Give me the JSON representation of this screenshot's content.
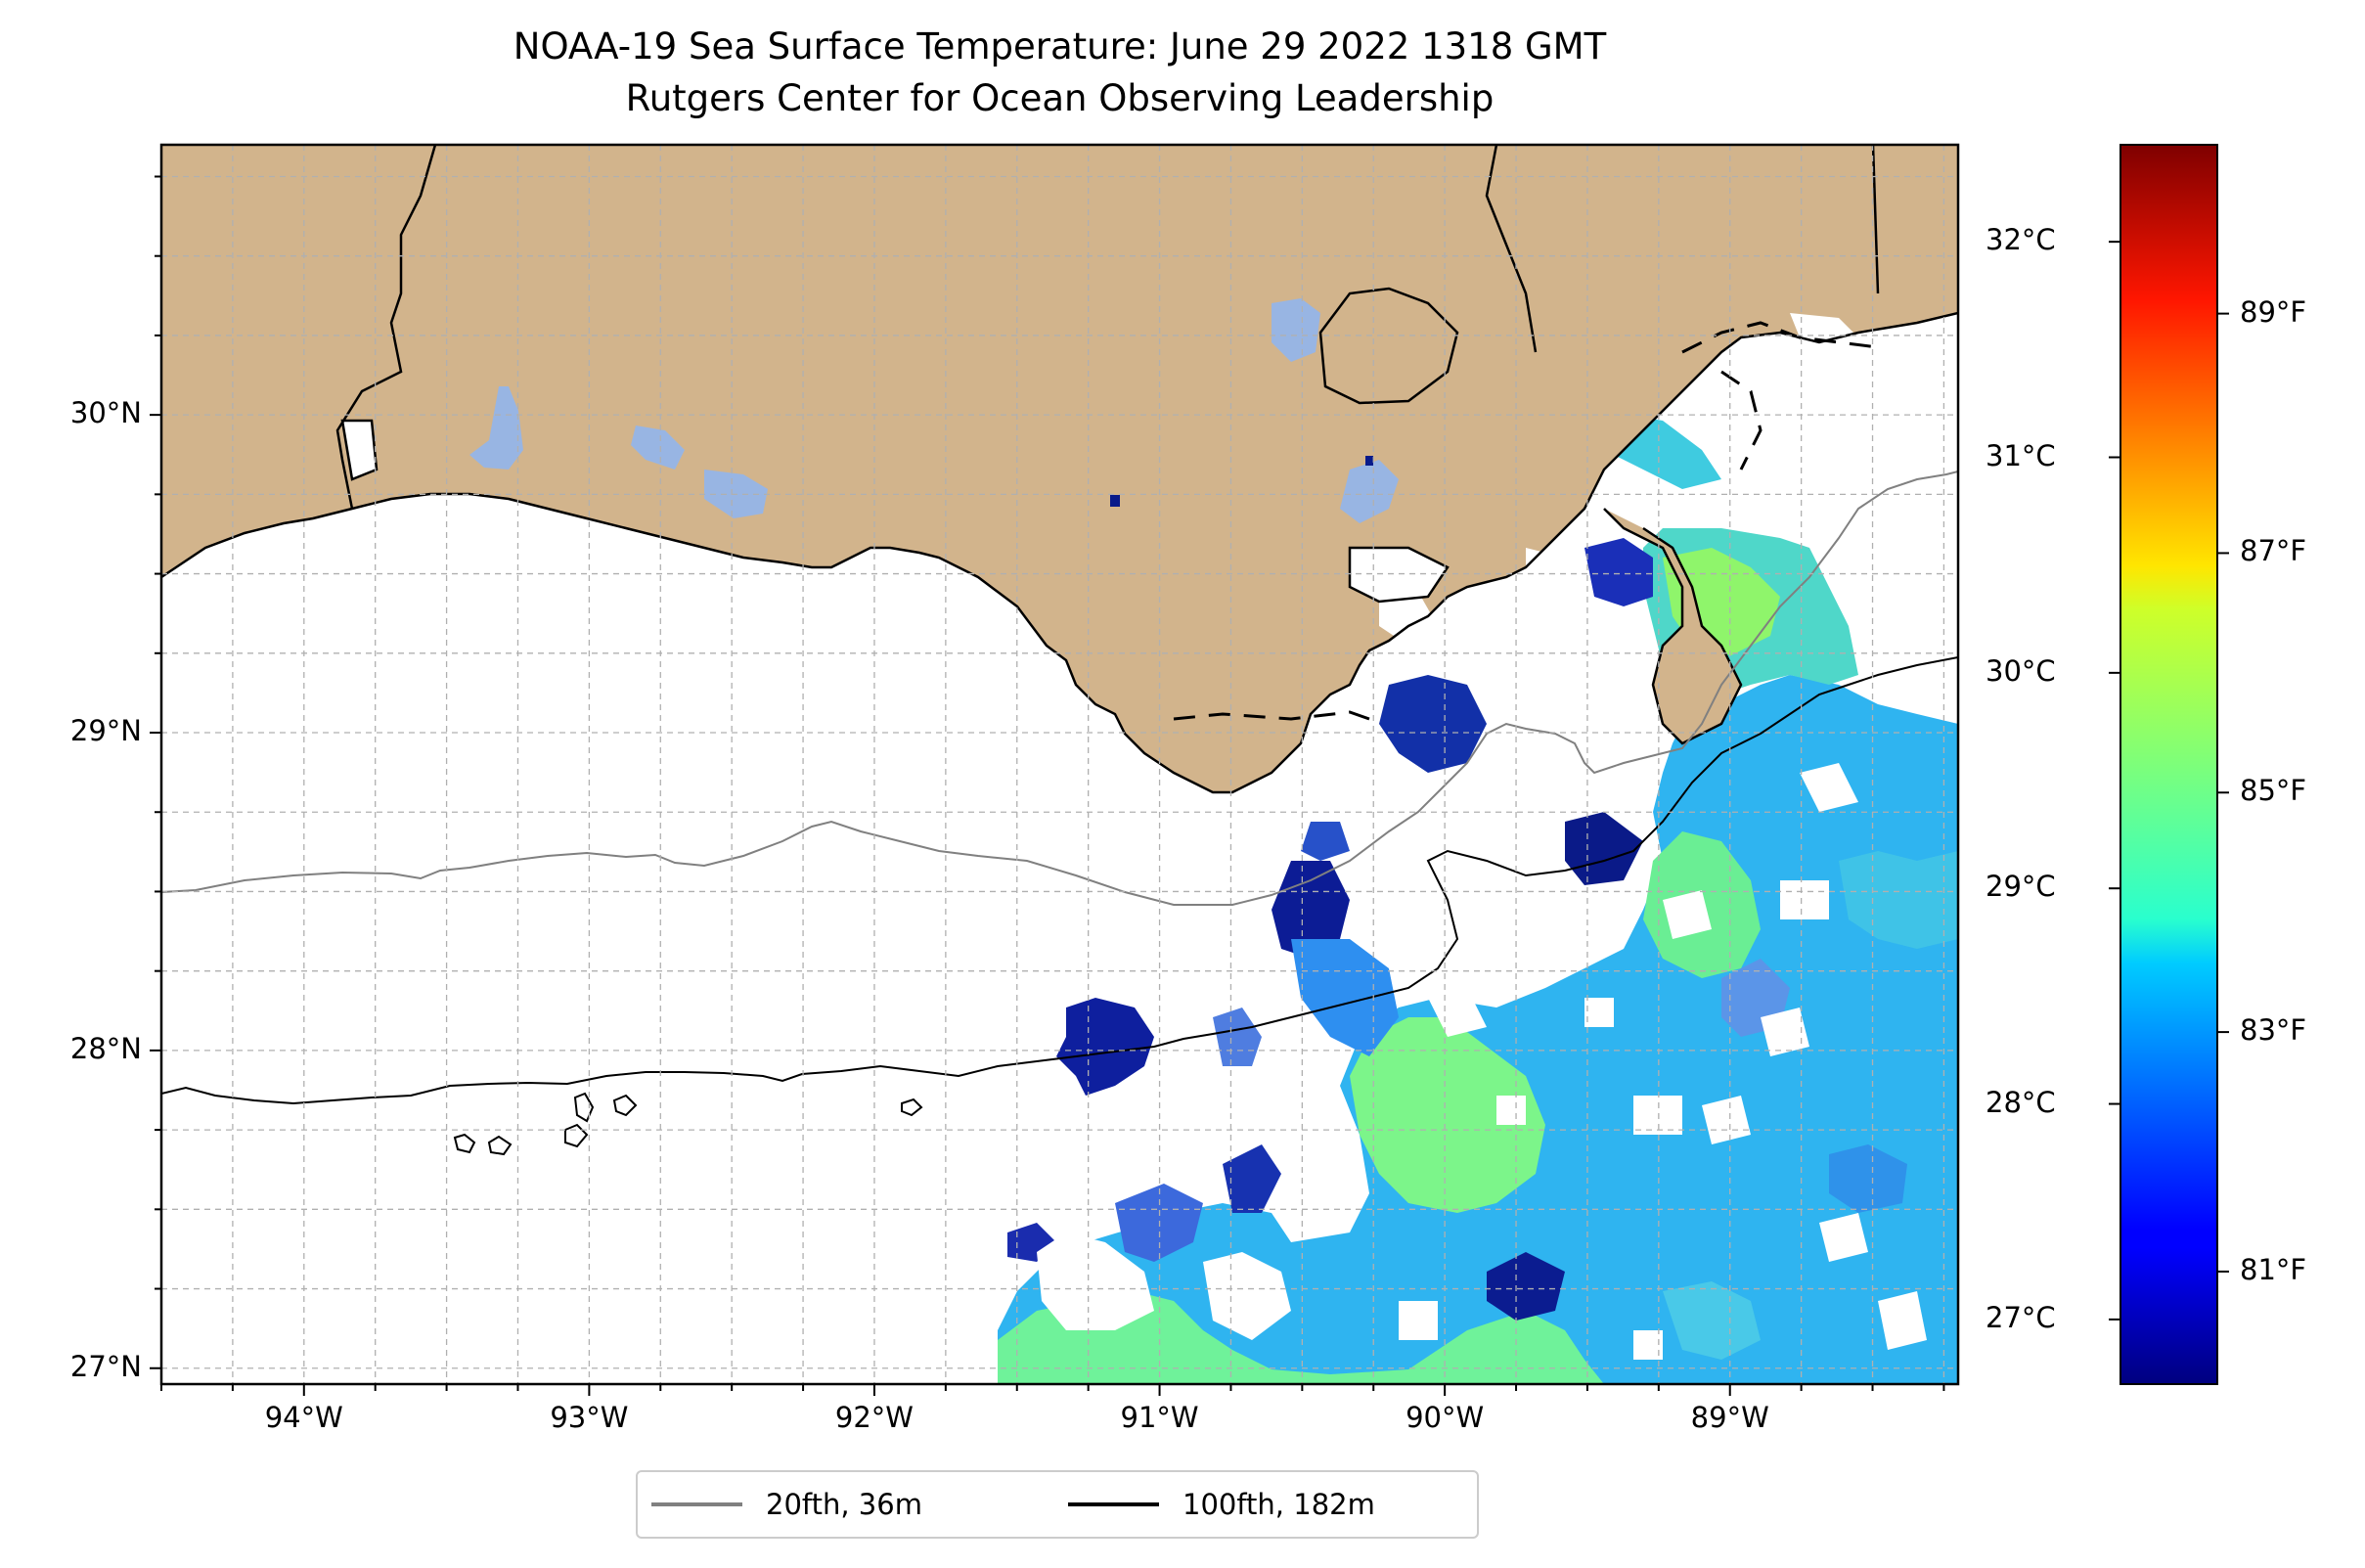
{
  "title": "NOAA-19 Sea Surface Temperature: June 29 2022 1318 GMT",
  "subtitle": "Rutgers Center for Ocean Observing Leadership",
  "map": {
    "colors": {
      "land": "#d2b48c",
      "lakes": "#98b5e3",
      "ocean_nodata": "#ffffff",
      "coast": "#000000",
      "grid": "#b0b0b0",
      "iso_20fth": "#808080",
      "iso_100fth": "#000000"
    },
    "lon_ticks": [
      {
        "label": "94°W",
        "value": -94
      },
      {
        "label": "93°W",
        "value": -93
      },
      {
        "label": "92°W",
        "value": -92
      },
      {
        "label": "91°W",
        "value": -91
      },
      {
        "label": "90°W",
        "value": -90
      },
      {
        "label": "89°W",
        "value": -89
      }
    ],
    "lat_ticks": [
      {
        "label": "30°N",
        "value": 30
      },
      {
        "label": "29°N",
        "value": 29
      },
      {
        "label": "28°N",
        "value": 28
      },
      {
        "label": "27°N",
        "value": 27
      }
    ],
    "lon_range": [
      -94.5,
      -88.2
    ],
    "lat_range": [
      26.95,
      30.85
    ]
  },
  "colorbar": {
    "colormap": "jet",
    "celsius_ticks": [
      {
        "label": "32°C",
        "value": 32
      },
      {
        "label": "31°C",
        "value": 31
      },
      {
        "label": "30°C",
        "value": 30
      },
      {
        "label": "29°C",
        "value": 29
      },
      {
        "label": "28°C",
        "value": 28
      },
      {
        "label": "27°C",
        "value": 27
      }
    ],
    "fahrenheit_ticks": [
      {
        "label": "89°F",
        "value": 89
      },
      {
        "label": "87°F",
        "value": 87
      },
      {
        "label": "85°F",
        "value": 85
      },
      {
        "label": "83°F",
        "value": 83
      },
      {
        "label": "81°F",
        "value": 81
      }
    ],
    "range_celsius": [
      26.7,
      32.45
    ]
  },
  "legend": {
    "items": [
      {
        "label": "20fth, 36m",
        "color": "#808080"
      },
      {
        "label": "100fth, 182m",
        "color": "#000000"
      }
    ]
  }
}
